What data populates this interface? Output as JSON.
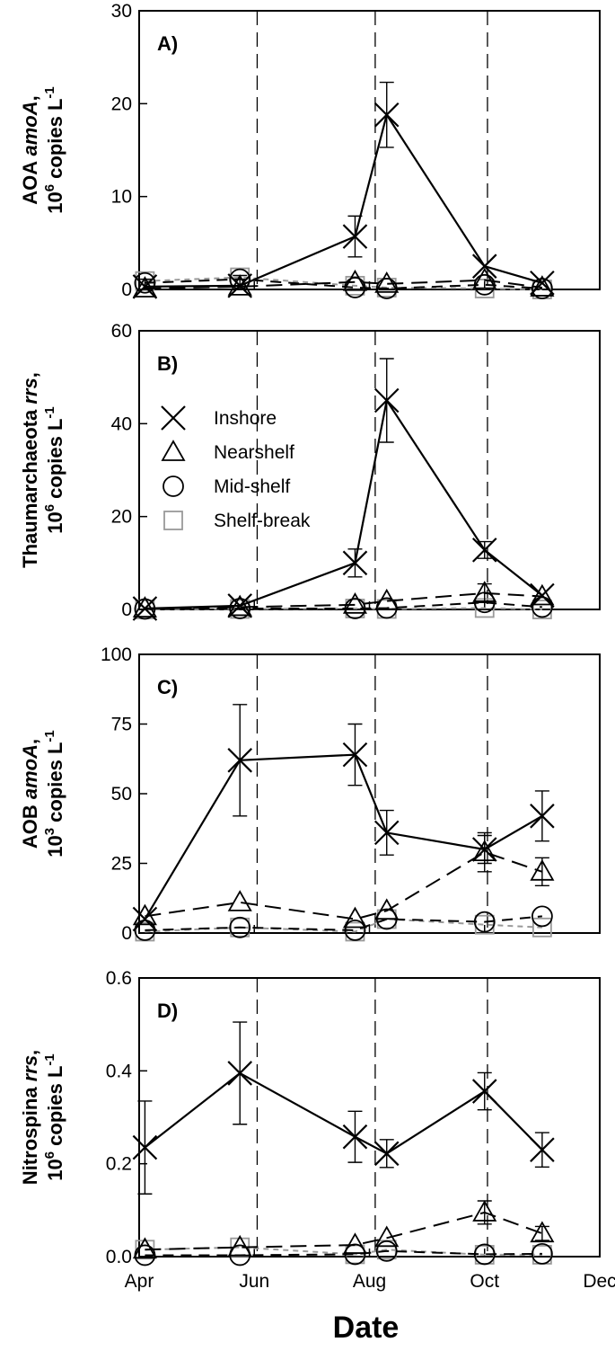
{
  "chart_data": {
    "type": "line",
    "xlabel": "Date",
    "x_ticks": [
      "Apr",
      "Jun",
      "Aug",
      "Oct",
      "Dec"
    ],
    "x_tick_months": [
      4,
      6,
      8,
      10,
      12
    ],
    "xlim": [
      4,
      12
    ],
    "vlines_month": [
      6.05,
      8.1,
      10.05
    ],
    "styles": {
      "Inshore": {
        "marker": "x",
        "color": "#000000",
        "dash": "none"
      },
      "Nearshelf": {
        "marker": "triangle",
        "color": "#000000",
        "dash": "18,9"
      },
      "Mid-shelf": {
        "marker": "circle",
        "color": "#000000",
        "dash": "12,8"
      },
      "Shelf-break": {
        "marker": "square",
        "color": "#999999",
        "dash": "6,5"
      }
    },
    "panels": [
      {
        "label": "A)",
        "ylabel_parts": [
          "AOA ",
          "amoA",
          ",",
          "10",
          "6",
          " copies L",
          "-1"
        ],
        "ylim": [
          0,
          30
        ],
        "yticks": [
          0,
          10,
          20,
          30
        ],
        "ytick_labels": [
          "0",
          "10",
          "20",
          "30"
        ],
        "show_legend": false,
        "series": [
          {
            "name": "Inshore",
            "x": [
              4.1,
              5.75,
              7.75,
              8.3,
              10.0,
              11.0
            ],
            "y": [
              0.3,
              0.4,
              5.7,
              18.8,
              2.5,
              0.7
            ],
            "err": [
              0,
              0,
              2.2,
              3.5,
              0,
              0
            ]
          },
          {
            "name": "Nearshelf",
            "x": [
              4.1,
              5.75,
              7.75,
              8.3,
              10.0,
              11.0
            ],
            "y": [
              0.1,
              0.3,
              0.8,
              0.6,
              1.0,
              0.2
            ],
            "err": [
              1.0,
              1.2,
              0,
              0,
              0,
              0
            ]
          },
          {
            "name": "Mid-shelf",
            "x": [
              4.1,
              5.75,
              7.75,
              8.3,
              10.0,
              11.0
            ],
            "y": [
              0.7,
              1.1,
              0.2,
              0.1,
              0.5,
              0.1
            ],
            "err": [
              0,
              0,
              0,
              0,
              0,
              0
            ]
          },
          {
            "name": "Shelf-break",
            "x": [
              4.1,
              5.75,
              7.75,
              8.3,
              10.0,
              11.0
            ],
            "y": [
              0.9,
              1.3,
              0.4,
              0.2,
              0.1,
              0.0
            ],
            "err": [
              0,
              0,
              0,
              0,
              0,
              0
            ]
          }
        ]
      },
      {
        "label": "B)",
        "ylabel_parts": [
          "Thaumarchaeota ",
          "rrs",
          ",",
          "10",
          "6",
          " copies L",
          "-1"
        ],
        "ylim": [
          0,
          60
        ],
        "yticks": [
          0,
          20,
          40,
          60
        ],
        "ytick_labels": [
          "0",
          "20",
          "40",
          "60"
        ],
        "show_legend": true,
        "series": [
          {
            "name": "Inshore",
            "x": [
              4.1,
              5.75,
              7.75,
              8.3,
              10.0,
              11.0
            ],
            "y": [
              0.2,
              0.8,
              10.0,
              45.0,
              12.8,
              3.0
            ],
            "err": [
              0,
              0,
              3.0,
              9.0,
              1.8,
              0
            ]
          },
          {
            "name": "Nearshelf",
            "x": [
              4.1,
              5.75,
              7.75,
              8.3,
              10.0,
              11.0
            ],
            "y": [
              0.2,
              0.5,
              1.0,
              1.8,
              3.5,
              2.8
            ],
            "err": [
              0,
              0,
              0,
              0,
              2.0,
              0
            ]
          },
          {
            "name": "Mid-shelf",
            "x": [
              4.1,
              5.75,
              7.75,
              8.3,
              10.0,
              11.0
            ],
            "y": [
              0.1,
              0.2,
              0.2,
              0.3,
              1.5,
              0.5
            ],
            "err": [
              0,
              0,
              0,
              0,
              0,
              0
            ]
          },
          {
            "name": "Shelf-break",
            "x": [
              4.1,
              5.75,
              7.75,
              8.3,
              10.0,
              11.0
            ],
            "y": [
              0.0,
              0.1,
              0.2,
              0.1,
              0.3,
              0.0
            ],
            "err": [
              0,
              0,
              0,
              0,
              0,
              0
            ]
          }
        ]
      },
      {
        "label": "C)",
        "ylabel_parts": [
          "AOB ",
          "amoA",
          ",",
          "10",
          "3",
          " copies L",
          "-1"
        ],
        "ylim": [
          0,
          100
        ],
        "yticks": [
          0,
          25,
          50,
          75,
          100
        ],
        "ytick_labels": [
          "0",
          "25",
          "50",
          "75",
          "100"
        ],
        "show_legend": false,
        "series": [
          {
            "name": "Inshore",
            "x": [
              4.1,
              5.75,
              7.75,
              8.3,
              10.0,
              11.0
            ],
            "y": [
              5,
              62,
              64,
              36,
              30,
              42
            ],
            "err": [
              0,
              20,
              11,
              8,
              5,
              9
            ]
          },
          {
            "name": "Nearshelf",
            "x": [
              4.1,
              5.75,
              7.75,
              8.3,
              10.0,
              11.0
            ],
            "y": [
              6,
              11,
              5,
              8,
              29,
              22
            ],
            "err": [
              0,
              0,
              0,
              0,
              7,
              5
            ]
          },
          {
            "name": "Mid-shelf",
            "x": [
              4.1,
              5.75,
              7.75,
              8.3,
              10.0,
              11.0
            ],
            "y": [
              1,
              2,
              1,
              5,
              4,
              6
            ],
            "err": [
              0,
              0,
              0,
              0,
              0,
              0
            ]
          },
          {
            "name": "Shelf-break",
            "x": [
              4.1,
              5.75,
              7.75,
              8.3,
              10.0,
              11.0
            ],
            "y": [
              0.5,
              2,
              0.5,
              5,
              3,
              2
            ],
            "err": [
              0,
              0,
              0,
              0,
              0,
              0
            ]
          }
        ]
      },
      {
        "label": "D)",
        "ylabel_parts": [
          "Nitrospina ",
          "rrs",
          ",",
          "10",
          "6",
          " copies L",
          "-1"
        ],
        "ylim": [
          0,
          0.6
        ],
        "yticks": [
          0,
          0.2,
          0.4,
          0.6
        ],
        "ytick_labels": [
          "0.0",
          "0.2",
          "0.4",
          "0.6"
        ],
        "show_legend": false,
        "series": [
          {
            "name": "Inshore",
            "x": [
              4.1,
              5.75,
              7.75,
              8.3,
              10.0,
              11.0
            ],
            "y": [
              0.235,
              0.395,
              0.258,
              0.222,
              0.356,
              0.23
            ],
            "err": [
              0.1,
              0.11,
              0.055,
              0.03,
              0.04,
              0.037
            ]
          },
          {
            "name": "Nearshelf",
            "x": [
              4.1,
              5.75,
              7.75,
              8.3,
              10.0,
              11.0
            ],
            "y": [
              0.015,
              0.02,
              0.025,
              0.04,
              0.095,
              0.05
            ],
            "err": [
              0,
              0,
              0,
              0,
              0.025,
              0.015
            ]
          },
          {
            "name": "Mid-shelf",
            "x": [
              4.1,
              5.75,
              7.75,
              8.3,
              10.0,
              11.0
            ],
            "y": [
              0.003,
              0.003,
              0.005,
              0.012,
              0.005,
              0.006
            ],
            "err": [
              0,
              0,
              0,
              0,
              0,
              0
            ]
          },
          {
            "name": "Shelf-break",
            "x": [
              4.1,
              5.75,
              7.75,
              8.3,
              10.0,
              11.0
            ],
            "y": [
              0.015,
              0.02,
              0.005,
              0.015,
              0.004,
              0.004
            ],
            "err": [
              0,
              0,
              0,
              0,
              0,
              0
            ]
          }
        ]
      }
    ],
    "legend": {
      "placement": "panel-B top-left",
      "entries": [
        "Inshore",
        "Nearshelf",
        "Mid-shelf",
        "Shelf-break"
      ]
    }
  }
}
